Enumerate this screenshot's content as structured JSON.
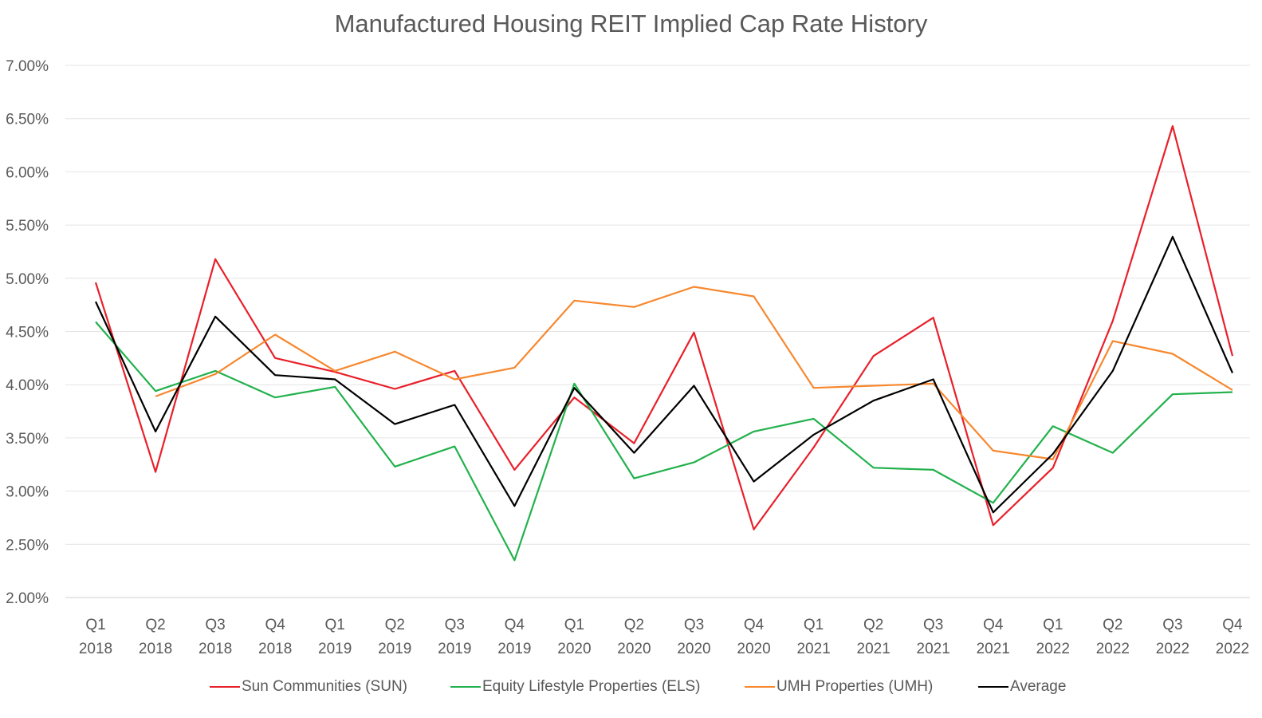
{
  "chart_data": {
    "type": "line",
    "title": "Manufactured Housing REIT Implied Cap Rate History",
    "xlabel": "",
    "ylabel": "",
    "ylim": [
      0.02,
      0.07
    ],
    "yticks": [
      "2.00%",
      "2.50%",
      "3.00%",
      "3.50%",
      "4.00%",
      "4.50%",
      "5.00%",
      "5.50%",
      "6.00%",
      "6.50%",
      "7.00%"
    ],
    "grid": true,
    "legend_position": "bottom",
    "categories": [
      [
        "Q1",
        "2018"
      ],
      [
        "Q2",
        "2018"
      ],
      [
        "Q3",
        "2018"
      ],
      [
        "Q4",
        "2018"
      ],
      [
        "Q1",
        "2019"
      ],
      [
        "Q2",
        "2019"
      ],
      [
        "Q3",
        "2019"
      ],
      [
        "Q4",
        "2019"
      ],
      [
        "Q1",
        "2020"
      ],
      [
        "Q2",
        "2020"
      ],
      [
        "Q3",
        "2020"
      ],
      [
        "Q4",
        "2020"
      ],
      [
        "Q1",
        "2021"
      ],
      [
        "Q2",
        "2021"
      ],
      [
        "Q3",
        "2021"
      ],
      [
        "Q4",
        "2021"
      ],
      [
        "Q1",
        "2022"
      ],
      [
        "Q2",
        "2022"
      ],
      [
        "Q3",
        "2022"
      ],
      [
        "Q4",
        "2022"
      ]
    ],
    "series": [
      {
        "name": "Sun Communities (SUN)",
        "color": "#e8202a",
        "values": [
          0.0496,
          0.0318,
          0.0518,
          0.0425,
          0.0412,
          0.0396,
          0.0413,
          0.032,
          0.0388,
          0.0345,
          0.0449,
          0.0264,
          0.0341,
          0.0427,
          0.0463,
          0.0268,
          0.0322,
          0.046,
          0.0643,
          0.0427
        ]
      },
      {
        "name": "Equity Lifestyle Properties (ELS)",
        "color": "#22b14c",
        "values": [
          0.0459,
          0.0394,
          0.0413,
          0.0388,
          0.0398,
          0.0323,
          0.0342,
          0.0235,
          0.0401,
          0.0312,
          0.0327,
          0.0356,
          0.0368,
          0.0322,
          0.032,
          0.0289,
          0.0361,
          0.0336,
          0.0391,
          0.0393
        ]
      },
      {
        "name": "UMH Properties (UMH)",
        "color": "#f7882f",
        "values": [
          null,
          0.0389,
          0.041,
          0.0447,
          0.0413,
          0.0431,
          0.0405,
          0.0416,
          0.0479,
          0.0473,
          0.0492,
          0.0483,
          0.0397,
          0.0399,
          0.0401,
          0.0338,
          0.033,
          0.0441,
          0.0429,
          0.0395
        ]
      },
      {
        "name": "Average",
        "color": "#000000",
        "values": [
          0.0478,
          0.0356,
          0.0464,
          0.0409,
          0.0405,
          0.0363,
          0.0381,
          0.0286,
          0.0397,
          0.0336,
          0.0399,
          0.0309,
          0.0353,
          0.0385,
          0.0405,
          0.028,
          0.0335,
          0.0413,
          0.0539,
          0.0411
        ]
      }
    ]
  }
}
